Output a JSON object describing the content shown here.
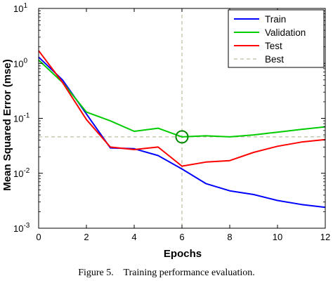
{
  "caption": "Figure 5.    Training performance evaluation.",
  "chart_data": {
    "type": "line",
    "title": "",
    "xlabel": "Epochs",
    "ylabel": "Mean Squared Error  (mse)",
    "yscale": "log",
    "xlim": [
      0,
      12
    ],
    "ylim": [
      0.001,
      10
    ],
    "x_ticks": [
      0,
      2,
      4,
      6,
      8,
      10,
      12
    ],
    "x_tick_labels": [
      "0",
      "2",
      "4",
      "6",
      "8",
      "10",
      "12"
    ],
    "y_ticks": [
      {
        "value": 0.001,
        "base": "10",
        "exp": "-3"
      },
      {
        "value": 0.01,
        "base": "10",
        "exp": "-2"
      },
      {
        "value": 0.1,
        "base": "10",
        "exp": "-1"
      },
      {
        "value": 1,
        "base": "10",
        "exp": "0"
      },
      {
        "value": 10,
        "base": "10",
        "exp": "1"
      }
    ],
    "legend_position": "top-right",
    "series": [
      {
        "name": "Train",
        "color": "#0000ff",
        "style": "solid",
        "x": [
          0,
          1,
          2,
          3,
          4,
          5,
          6,
          7,
          8,
          9,
          10,
          11,
          12
        ],
        "y": [
          1.3,
          0.5,
          0.12,
          0.029,
          0.028,
          0.021,
          0.012,
          0.0065,
          0.0048,
          0.0041,
          0.0032,
          0.0027,
          0.0024
        ]
      },
      {
        "name": "Validation",
        "color": "#00cc00",
        "style": "solid",
        "x": [
          0,
          1,
          2,
          3,
          4,
          5,
          6,
          7,
          8,
          9,
          10,
          11,
          12
        ],
        "y": [
          1.15,
          0.45,
          0.13,
          0.09,
          0.058,
          0.066,
          0.046,
          0.048,
          0.046,
          0.05,
          0.056,
          0.063,
          0.07
        ]
      },
      {
        "name": "Test",
        "color": "#ff0000",
        "style": "solid",
        "x": [
          0,
          1,
          2,
          3,
          4,
          5,
          6,
          7,
          8,
          9,
          10,
          11,
          12
        ],
        "y": [
          1.7,
          0.45,
          0.095,
          0.03,
          0.027,
          0.03,
          0.0135,
          0.016,
          0.017,
          0.024,
          0.031,
          0.037,
          0.041
        ]
      },
      {
        "name": "Best",
        "color": "#aab08a",
        "style": "dashed",
        "hline": 0.046,
        "vline": 6
      }
    ],
    "best_marker": {
      "x": 6,
      "y": 0.046,
      "color": "#008800"
    },
    "grid": false
  }
}
